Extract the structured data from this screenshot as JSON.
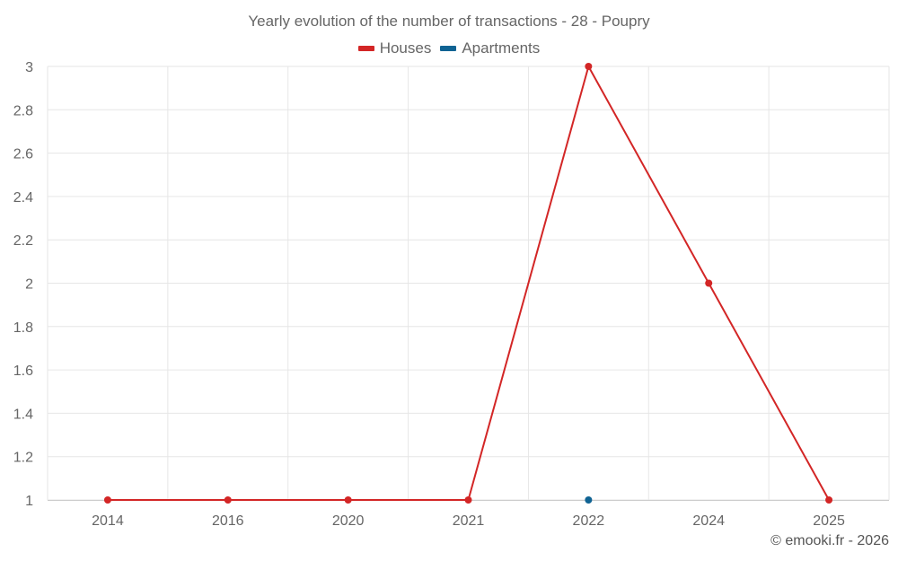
{
  "chart_data": {
    "type": "line",
    "title": "Yearly evolution of the number of transactions - 28 - Poupry",
    "categories": [
      "2014",
      "2016",
      "2020",
      "2021",
      "2022",
      "2024",
      "2025"
    ],
    "series": [
      {
        "name": "Houses",
        "color": "#d32626",
        "values": [
          1,
          1,
          1,
          1,
          3,
          2,
          1
        ]
      },
      {
        "name": "Apartments",
        "color": "#0f6393",
        "values": [
          null,
          null,
          null,
          null,
          1,
          null,
          null
        ]
      }
    ],
    "y_ticks": [
      "1",
      "1.2",
      "1.4",
      "1.6",
      "1.8",
      "2",
      "2.2",
      "2.4",
      "2.6",
      "2.8",
      "3"
    ],
    "ylim": [
      1,
      3
    ],
    "xlabel": "",
    "ylabel": "",
    "grid": true,
    "legend_position": "top-center"
  },
  "credits": "© emooki.fr - 2026"
}
